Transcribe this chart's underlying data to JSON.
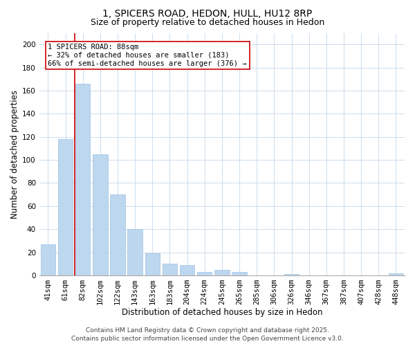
{
  "title": "1, SPICERS ROAD, HEDON, HULL, HU12 8RP",
  "subtitle": "Size of property relative to detached houses in Hedon",
  "xlabel": "Distribution of detached houses by size in Hedon",
  "ylabel": "Number of detached properties",
  "bar_labels": [
    "41sqm",
    "61sqm",
    "82sqm",
    "102sqm",
    "122sqm",
    "143sqm",
    "163sqm",
    "183sqm",
    "204sqm",
    "224sqm",
    "245sqm",
    "265sqm",
    "285sqm",
    "306sqm",
    "326sqm",
    "346sqm",
    "367sqm",
    "387sqm",
    "407sqm",
    "428sqm",
    "448sqm"
  ],
  "bar_values": [
    27,
    118,
    166,
    105,
    70,
    40,
    19,
    10,
    9,
    3,
    5,
    3,
    0,
    0,
    1,
    0,
    0,
    0,
    0,
    0,
    2
  ],
  "bar_color": "#bdd7ee",
  "bar_edge_color": "#9dc3e6",
  "ylim": [
    0,
    210
  ],
  "yticks": [
    0,
    20,
    40,
    60,
    80,
    100,
    120,
    140,
    160,
    180,
    200
  ],
  "vline_color": "#cc0000",
  "annotation_title": "1 SPICERS ROAD: 88sqm",
  "annotation_line1": "← 32% of detached houses are smaller (183)",
  "annotation_line2": "66% of semi-detached houses are larger (376) →",
  "annotation_box_color": "#ffffff",
  "annotation_box_edge": "#cc0000",
  "footer_line1": "Contains HM Land Registry data © Crown copyright and database right 2025.",
  "footer_line2": "Contains public sector information licensed under the Open Government Licence v3.0.",
  "background_color": "#ffffff",
  "grid_color": "#ccdded",
  "title_fontsize": 10,
  "subtitle_fontsize": 9,
  "axis_label_fontsize": 8.5,
  "tick_fontsize": 7.5,
  "footer_fontsize": 6.5,
  "annotation_fontsize": 7.5
}
